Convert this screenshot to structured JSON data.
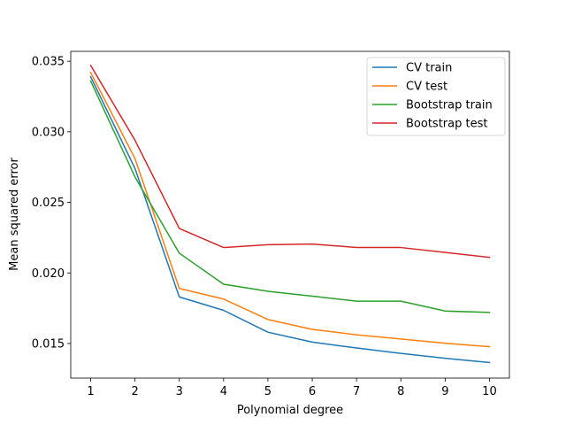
{
  "chart_data": {
    "type": "line",
    "title": "",
    "xlabel": "Polynomial degree",
    "ylabel": "Mean squared error",
    "x": [
      1,
      2,
      3,
      4,
      5,
      6,
      7,
      8,
      9,
      10
    ],
    "xticks": [
      "1",
      "2",
      "3",
      "4",
      "5",
      "6",
      "7",
      "8",
      "9",
      "10"
    ],
    "yticks": [
      0.015,
      0.02,
      0.025,
      0.03,
      0.035
    ],
    "ytick_labels": [
      "0.015",
      "0.020",
      "0.025",
      "0.030",
      "0.035"
    ],
    "xlim": [
      0.55,
      10.45
    ],
    "ylim": [
      0.01255,
      0.0357
    ],
    "grid": false,
    "legend_position": "top-right",
    "series": [
      {
        "name": "CV train",
        "color": "#1f77b4",
        "values": [
          0.0339,
          0.0274,
          0.0183,
          0.01735,
          0.0158,
          0.0151,
          0.01468,
          0.0143,
          0.01395,
          0.01365
        ]
      },
      {
        "name": "CV test",
        "color": "#ff7f0e",
        "values": [
          0.0342,
          0.0281,
          0.0189,
          0.01815,
          0.0167,
          0.016,
          0.01562,
          0.01532,
          0.01502,
          0.01477
        ]
      },
      {
        "name": "Bootstrap train",
        "color": "#2ca02c",
        "values": [
          0.0336,
          0.0268,
          0.0214,
          0.0192,
          0.0187,
          0.01835,
          0.018,
          0.018,
          0.0173,
          0.0172
        ]
      },
      {
        "name": "Bootstrap test",
        "color": "#d62728",
        "values": [
          0.0347,
          0.0294,
          0.02315,
          0.0218,
          0.022,
          0.02205,
          0.0218,
          0.0218,
          0.02145,
          0.0211
        ]
      }
    ]
  }
}
